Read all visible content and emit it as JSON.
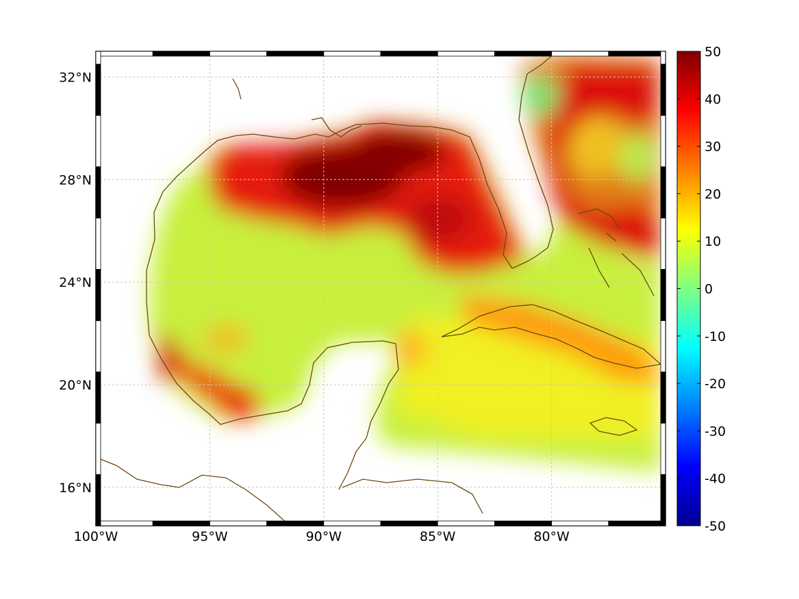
{
  "map": {
    "lon_range": [
      -100,
      -75
    ],
    "lat_range": [
      14.5,
      33
    ],
    "lon_ticks": [
      {
        "value": -100,
        "label": "100°W"
      },
      {
        "value": -95,
        "label": "95°W"
      },
      {
        "value": -90,
        "label": "90°W"
      },
      {
        "value": -85,
        "label": "85°W"
      },
      {
        "value": -80,
        "label": "80°W"
      }
    ],
    "lat_ticks": [
      {
        "value": 16,
        "label": "16°N"
      },
      {
        "value": 20,
        "label": "20°N"
      },
      {
        "value": 24,
        "label": "24°N"
      },
      {
        "value": 28,
        "label": "28°N"
      },
      {
        "value": 32,
        "label": "32°N"
      }
    ],
    "grid": true,
    "coastline_color": "#6b4a10",
    "colormap": "jet"
  },
  "colorbar": {
    "min": -50,
    "max": 50,
    "ticks": [
      {
        "value": 50,
        "label": "50"
      },
      {
        "value": 40,
        "label": "40"
      },
      {
        "value": 30,
        "label": "30"
      },
      {
        "value": 20,
        "label": "20"
      },
      {
        "value": 10,
        "label": "10"
      },
      {
        "value": 0,
        "label": "0"
      },
      {
        "value": -10,
        "label": "-10"
      },
      {
        "value": -20,
        "label": "-20"
      },
      {
        "value": -30,
        "label": "-30"
      },
      {
        "value": -40,
        "label": "-40"
      },
      {
        "value": -50,
        "label": "-50"
      }
    ]
  }
}
